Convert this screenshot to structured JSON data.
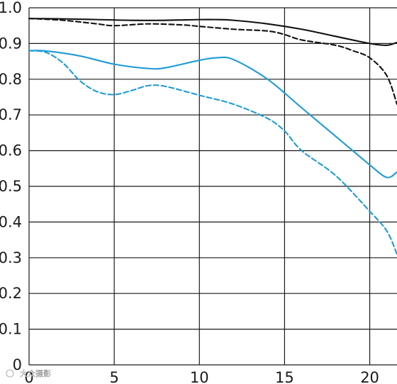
{
  "chart_data": {
    "type": "line",
    "title": "",
    "xlabel": "",
    "ylabel": "",
    "xlim": [
      0,
      21.6
    ],
    "ylim": [
      0,
      1.0
    ],
    "grid": true,
    "x_ticks": [
      "0",
      "5",
      "10",
      "15",
      "20"
    ],
    "y_ticks": [
      "0",
      "0.1",
      "0.2",
      "0.3",
      "0.4",
      "0.5",
      "0.6",
      "0.7",
      "0.8",
      "0.9",
      "1.0"
    ],
    "x_tick_values": [
      0,
      5,
      10,
      15,
      20
    ],
    "y_tick_values": [
      0,
      0.1,
      0.2,
      0.3,
      0.4,
      0.5,
      0.6,
      0.7,
      0.8,
      0.9,
      1.0
    ],
    "series": [
      {
        "color": "#111111",
        "dash": "solid",
        "x": [
          0,
          2,
          4,
          6,
          8,
          10,
          11,
          12,
          14,
          16,
          18,
          20,
          21,
          21.6
        ],
        "y": [
          0.97,
          0.969,
          0.967,
          0.965,
          0.965,
          0.967,
          0.967,
          0.965,
          0.955,
          0.94,
          0.92,
          0.9,
          0.895,
          0.903
        ]
      },
      {
        "color": "#111111",
        "dash": "dashed",
        "x": [
          0,
          2,
          4,
          5,
          7,
          9,
          10,
          12,
          14,
          15,
          16,
          18,
          19,
          20,
          21,
          21.6
        ],
        "y": [
          0.97,
          0.965,
          0.955,
          0.95,
          0.955,
          0.952,
          0.948,
          0.94,
          0.935,
          0.925,
          0.91,
          0.895,
          0.88,
          0.86,
          0.81,
          0.73
        ]
      },
      {
        "color": "#1e9bd7",
        "dash": "solid",
        "x": [
          0,
          1,
          3,
          5,
          7,
          8,
          10,
          11,
          12,
          14,
          16,
          18,
          20,
          21,
          21.6
        ],
        "y": [
          0.88,
          0.879,
          0.865,
          0.842,
          0.83,
          0.832,
          0.853,
          0.86,
          0.855,
          0.8,
          0.72,
          0.64,
          0.56,
          0.525,
          0.54
        ]
      },
      {
        "color": "#1e9bd7",
        "dash": "dashed",
        "x": [
          0,
          1,
          2,
          3,
          4,
          5,
          6,
          7,
          8,
          10,
          12,
          14,
          15,
          16,
          18,
          20,
          21,
          21.6
        ],
        "y": [
          0.88,
          0.875,
          0.845,
          0.795,
          0.765,
          0.757,
          0.768,
          0.782,
          0.78,
          0.755,
          0.73,
          0.69,
          0.655,
          0.6,
          0.53,
          0.43,
          0.375,
          0.31
        ]
      }
    ]
  },
  "watermark": "大众摄影"
}
